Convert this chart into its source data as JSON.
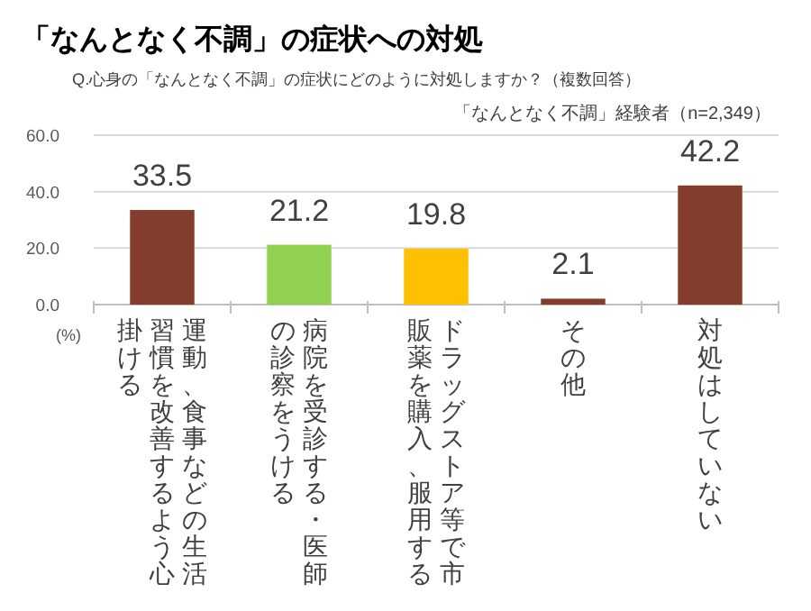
{
  "chart_data": {
    "type": "bar",
    "title": "「なんとなく不調」の症状への対処",
    "subtitle": "Q.心身の「なんとなく不調」の症状にどのように対処しますか？（複数回答）",
    "ylabel": "(%)",
    "annotations": [
      "「なんとなく不調」経験者（n=2,349）"
    ],
    "categories": [
      "運動、食事などの生活習慣を改善するよう心掛ける",
      "病院を受診する・医師の診察をうける",
      "ドラッグストア等で市販薬を購入、服用する",
      "その他",
      "対処はしていない"
    ],
    "values": [
      33.5,
      21.2,
      19.8,
      2.1,
      42.2
    ],
    "colors": [
      "#843c2c",
      "#92d050",
      "#ffc000",
      "#843c2c",
      "#843c2c"
    ],
    "ylim": [
      0,
      60
    ],
    "yticks": [
      {
        "value": 0,
        "label": "0.0"
      },
      {
        "value": 20,
        "label": "20.0"
      },
      {
        "value": 40,
        "label": "40.0"
      },
      {
        "value": 60,
        "label": "60.0"
      }
    ],
    "grid": "y",
    "data_labels": true
  }
}
